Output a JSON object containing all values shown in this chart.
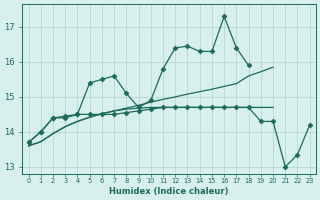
{
  "xlabel": "Humidex (Indice chaleur)",
  "x_values": [
    0,
    1,
    2,
    3,
    4,
    5,
    6,
    7,
    8,
    9,
    10,
    11,
    12,
    13,
    14,
    15,
    16,
    17,
    18,
    19,
    20,
    21,
    22,
    23
  ],
  "line1_zigzag": [
    13.7,
    14.0,
    14.4,
    14.4,
    14.5,
    15.4,
    15.5,
    15.6,
    15.1,
    14.7,
    14.9,
    15.8,
    16.4,
    16.45,
    16.3,
    16.3,
    17.3,
    16.4,
    15.9,
    null,
    null,
    null,
    null,
    null
  ],
  "line2_with_markers": [
    13.7,
    14.0,
    14.4,
    14.45,
    14.5,
    14.5,
    14.5,
    14.5,
    14.55,
    14.6,
    14.65,
    14.7,
    14.7,
    14.7,
    14.7,
    14.7,
    14.7,
    14.7,
    14.7,
    14.3,
    14.3,
    13.0,
    13.35,
    14.2
  ],
  "line3_slope": [
    13.6,
    13.72,
    13.95,
    14.15,
    14.3,
    14.42,
    14.52,
    14.6,
    14.68,
    14.76,
    14.85,
    14.93,
    15.0,
    15.08,
    15.15,
    15.22,
    15.3,
    15.38,
    15.6,
    15.72,
    15.85,
    null,
    null,
    null
  ],
  "line4_flat": [
    13.6,
    13.72,
    13.95,
    14.15,
    14.3,
    14.42,
    14.52,
    14.6,
    14.65,
    14.68,
    14.7,
    14.7,
    14.7,
    14.7,
    14.7,
    14.7,
    14.7,
    14.7,
    14.7,
    14.7,
    14.7,
    null,
    null,
    null
  ],
  "bg_color": "#d8f0ec",
  "grid_color": "#aed4cf",
  "line_color": "#1a6b5a",
  "ylim": [
    12.8,
    17.65
  ],
  "yticks": [
    13,
    14,
    15,
    16,
    17
  ],
  "xlim": [
    -0.5,
    23.5
  ],
  "markersize": 2.5
}
